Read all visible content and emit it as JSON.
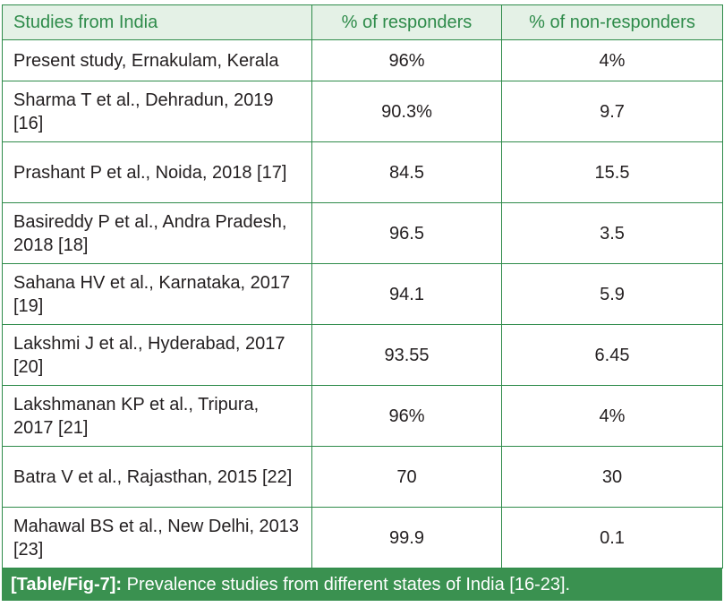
{
  "table": {
    "headers": [
      "Studies from India",
      "% of responders",
      "% of non-responders"
    ],
    "rows": [
      {
        "study": "Present study, Ernakulam, Kerala",
        "responders": "96%",
        "non_responders": "4%"
      },
      {
        "study": "Sharma T et al., Dehradun, 2019 [16]",
        "responders": "90.3%",
        "non_responders": "9.7"
      },
      {
        "study": "Prashant P et al., Noida, 2018 [17]",
        "responders": "84.5",
        "non_responders": "15.5"
      },
      {
        "study": "Basireddy P et al., Andra Pradesh, 2018 [18]",
        "responders": "96.5",
        "non_responders": "3.5"
      },
      {
        "study": "Sahana HV et al., Karnataka, 2017 [19]",
        "responders": "94.1",
        "non_responders": "5.9"
      },
      {
        "study": "Lakshmi J et al., Hyderabad, 2017 [20]",
        "responders": "93.55",
        "non_responders": "6.45"
      },
      {
        "study": "Lakshmanan KP et al., Tripura, 2017 [21]",
        "responders": "96%",
        "non_responders": "4%"
      },
      {
        "study": "Batra V et al., Rajasthan, 2015 [22]",
        "responders": "70",
        "non_responders": "30"
      },
      {
        "study": "Mahawal BS et al., New Delhi, 2013 [23]",
        "responders": "99.9",
        "non_responders": "0.1"
      }
    ]
  },
  "caption": {
    "label": "[Table/Fig-7]:",
    "text": "Prevalence studies from different states of India [16-23]."
  },
  "colors": {
    "border": "#2e8b4a",
    "header_bg": "#e4f1e6",
    "header_text": "#2e8b4a",
    "caption_bg": "#3a9150"
  }
}
